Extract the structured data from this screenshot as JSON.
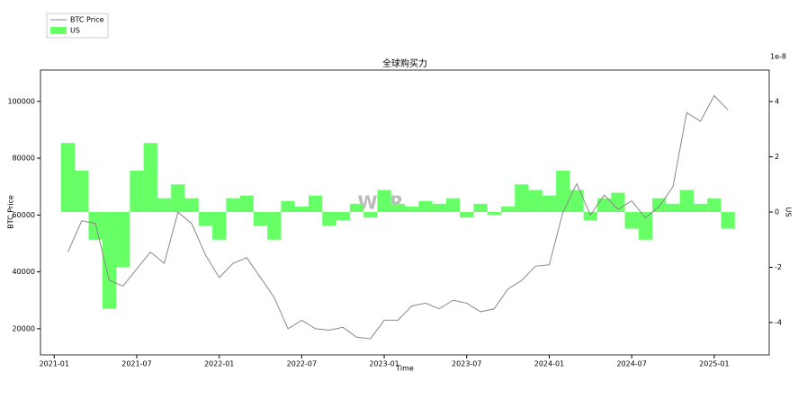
{
  "chart_data": {
    "type": "bar-line",
    "title": "全球购买力",
    "watermark": "WTR",
    "xlabel": "Time",
    "ylabel": "BTC Price",
    "y2label": "US",
    "y2_offset_label": "1e-8",
    "x": [
      "2021-02",
      "2021-03",
      "2021-04",
      "2021-05",
      "2021-06",
      "2021-07",
      "2021-08",
      "2021-09",
      "2021-10",
      "2021-11",
      "2021-12",
      "2022-01",
      "2022-02",
      "2022-03",
      "2022-04",
      "2022-05",
      "2022-06",
      "2022-07",
      "2022-08",
      "2022-09",
      "2022-10",
      "2022-11",
      "2022-12",
      "2023-01",
      "2023-02",
      "2023-03",
      "2023-04",
      "2023-05",
      "2023-06",
      "2023-07",
      "2023-08",
      "2023-09",
      "2023-10",
      "2023-11",
      "2023-12",
      "2024-01",
      "2024-02",
      "2024-03",
      "2024-04",
      "2024-05",
      "2024-06",
      "2024-07",
      "2024-08",
      "2024-09",
      "2024-10",
      "2024-11",
      "2024-12",
      "2025-01",
      "2025-02"
    ],
    "series": [
      {
        "name": "BTC Price",
        "type": "line",
        "color": "#888888",
        "values": [
          47000,
          58000,
          57000,
          37000,
          35000,
          41000,
          47000,
          43000,
          61000,
          57000,
          46000,
          38000,
          43000,
          45000,
          38000,
          31000,
          20000,
          23000,
          20000,
          19500,
          20500,
          17000,
          16500,
          23000,
          23000,
          28000,
          29000,
          27000,
          30000,
          29000,
          26000,
          27000,
          34000,
          37000,
          42000,
          42500,
          61000,
          71000,
          60000,
          67000,
          62000,
          65000,
          59000,
          63000,
          70000,
          96000,
          93000,
          102000,
          97000
        ]
      },
      {
        "name": "US",
        "type": "bar",
        "axis": "y2",
        "color": "#66ff66",
        "values": [
          2.5,
          1.5,
          -1,
          -3.5,
          -2,
          1.5,
          2.5,
          0.5,
          1,
          0.5,
          -0.5,
          -1,
          0.5,
          0.6,
          -0.5,
          -1,
          0.4,
          0.2,
          0.6,
          -0.5,
          -0.3,
          0.3,
          -0.2,
          0.8,
          0.3,
          0.2,
          0.4,
          0.3,
          0.5,
          -0.2,
          0.3,
          -0.1,
          0.2,
          1.0,
          0.8,
          0.6,
          1.5,
          0.8,
          -0.3,
          0.5,
          0.7,
          -0.6,
          -1.0,
          0.5,
          0.3,
          0.8,
          0.3,
          0.5,
          -0.6
        ]
      }
    ],
    "xlim": [
      "2020-12",
      "2025-05"
    ],
    "xticks": [
      "2021-01",
      "2021-07",
      "2022-01",
      "2022-07",
      "2023-01",
      "2023-07",
      "2024-01",
      "2024-07",
      "2025-01"
    ],
    "ylim": [
      10800,
      111000
    ],
    "yticks": [
      20000,
      40000,
      60000,
      80000,
      100000
    ],
    "y2lim": [
      -5.17,
      5.14
    ],
    "y2ticks": [
      -4,
      -2,
      0,
      2,
      4
    ],
    "legend": "top-left"
  }
}
